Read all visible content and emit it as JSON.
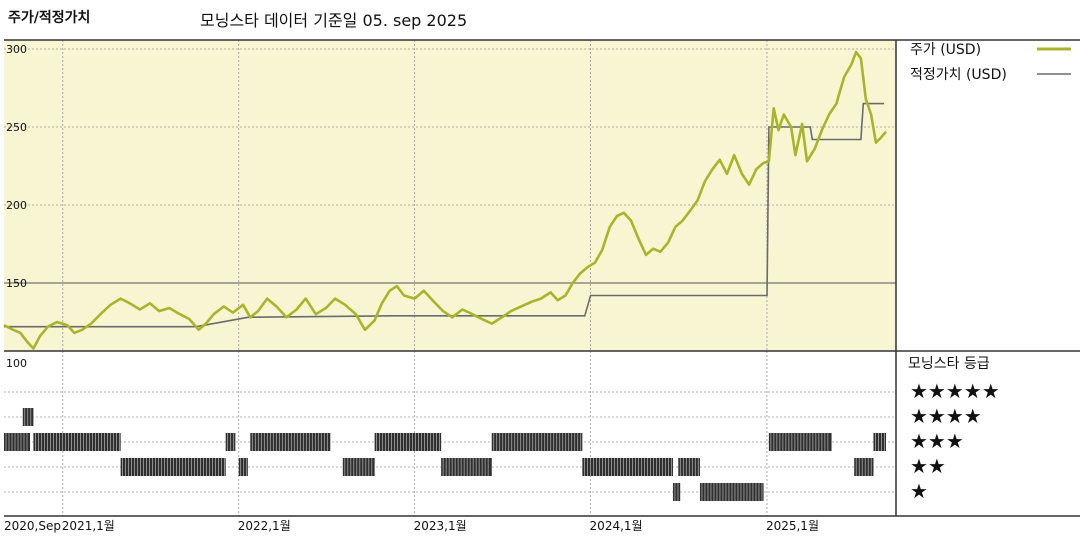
{
  "header": {
    "chart_label": "주가/적정가치",
    "source_note": "모닝스타 데이터 기준일 05. sep 2025"
  },
  "legend": {
    "price_label": "주가 (USD)",
    "fair_label": "적정가치 (USD)",
    "rating_title": "모닝스타 등급",
    "stars": [
      "★★★★★",
      "★★★★",
      "★★★",
      "★★",
      "★"
    ]
  },
  "colors": {
    "price": "#a8b52a",
    "fair": "#6b6b6b",
    "plot_bg": "#f8f5d2",
    "rating_bar": "#333333"
  },
  "chart_data": [
    {
      "type": "line",
      "ylim": [
        100,
        300
      ],
      "yticks": [
        100,
        150,
        200,
        250,
        300
      ],
      "xlim": [
        "2020-09-01",
        "2025-09-05"
      ],
      "xticks": [
        {
          "date": "2020-09-01",
          "label": "2020,Sep"
        },
        {
          "date": "2021-01-01",
          "label": "2021,1월"
        },
        {
          "date": "2022-01-01",
          "label": "2022,1월"
        },
        {
          "date": "2023-01-01",
          "label": "2023,1월"
        },
        {
          "date": "2024-01-01",
          "label": "2024,1월"
        },
        {
          "date": "2025-01-01",
          "label": "2025,1월"
        }
      ],
      "grid": true,
      "series": [
        {
          "name": "주가 (USD)",
          "points": [
            [
              "2020-09-01",
              123
            ],
            [
              "2020-09-20",
              120
            ],
            [
              "2020-10-05",
              118
            ],
            [
              "2020-10-20",
              112
            ],
            [
              "2020-11-01",
              108
            ],
            [
              "2020-11-15",
              116
            ],
            [
              "2020-12-01",
              122
            ],
            [
              "2020-12-20",
              125
            ],
            [
              "2021-01-10",
              123
            ],
            [
              "2021-01-25",
              118
            ],
            [
              "2021-02-10",
              120
            ],
            [
              "2021-03-01",
              124
            ],
            [
              "2021-03-20",
              130
            ],
            [
              "2021-04-10",
              136
            ],
            [
              "2021-05-01",
              140
            ],
            [
              "2021-05-20",
              137
            ],
            [
              "2021-06-10",
              133
            ],
            [
              "2021-07-01",
              137
            ],
            [
              "2021-07-20",
              132
            ],
            [
              "2021-08-10",
              134
            ],
            [
              "2021-09-01",
              130
            ],
            [
              "2021-09-20",
              127
            ],
            [
              "2021-10-10",
              120
            ],
            [
              "2021-10-25",
              124
            ],
            [
              "2021-11-10",
              130
            ],
            [
              "2021-12-01",
              135
            ],
            [
              "2021-12-20",
              131
            ],
            [
              "2022-01-10",
              136
            ],
            [
              "2022-01-25",
              128
            ],
            [
              "2022-02-10",
              132
            ],
            [
              "2022-03-01",
              140
            ],
            [
              "2022-03-20",
              135
            ],
            [
              "2022-04-10",
              128
            ],
            [
              "2022-05-01",
              133
            ],
            [
              "2022-05-20",
              140
            ],
            [
              "2022-06-10",
              130
            ],
            [
              "2022-07-01",
              134
            ],
            [
              "2022-07-20",
              140
            ],
            [
              "2022-08-10",
              136
            ],
            [
              "2022-09-01",
              130
            ],
            [
              "2022-09-20",
              120
            ],
            [
              "2022-10-10",
              126
            ],
            [
              "2022-10-25",
              137
            ],
            [
              "2022-11-10",
              145
            ],
            [
              "2022-11-25",
              148
            ],
            [
              "2022-12-10",
              142
            ],
            [
              "2023-01-01",
              140
            ],
            [
              "2023-01-20",
              145
            ],
            [
              "2023-02-10",
              138
            ],
            [
              "2023-03-01",
              132
            ],
            [
              "2023-03-20",
              128
            ],
            [
              "2023-04-10",
              133
            ],
            [
              "2023-05-01",
              130
            ],
            [
              "2023-05-20",
              127
            ],
            [
              "2023-06-10",
              124
            ],
            [
              "2023-07-01",
              128
            ],
            [
              "2023-07-20",
              132
            ],
            [
              "2023-08-10",
              135
            ],
            [
              "2023-09-01",
              138
            ],
            [
              "2023-09-20",
              140
            ],
            [
              "2023-10-10",
              144
            ],
            [
              "2023-10-25",
              139
            ],
            [
              "2023-11-10",
              142
            ],
            [
              "2023-11-25",
              150
            ],
            [
              "2023-12-10",
              156
            ],
            [
              "2023-12-25",
              160
            ],
            [
              "2024-01-10",
              163
            ],
            [
              "2024-01-25",
              171
            ],
            [
              "2024-02-10",
              186
            ],
            [
              "2024-02-25",
              193
            ],
            [
              "2024-03-10",
              195
            ],
            [
              "2024-03-25",
              190
            ],
            [
              "2024-04-10",
              178
            ],
            [
              "2024-04-25",
              168
            ],
            [
              "2024-05-10",
              172
            ],
            [
              "2024-05-25",
              170
            ],
            [
              "2024-06-10",
              176
            ],
            [
              "2024-06-25",
              186
            ],
            [
              "2024-07-10",
              190
            ],
            [
              "2024-07-25",
              196
            ],
            [
              "2024-08-10",
              203
            ],
            [
              "2024-08-25",
              215
            ],
            [
              "2024-09-10",
              223
            ],
            [
              "2024-09-25",
              229
            ],
            [
              "2024-10-10",
              220
            ],
            [
              "2024-10-25",
              232
            ],
            [
              "2024-11-10",
              220
            ],
            [
              "2024-11-25",
              213
            ],
            [
              "2024-12-10",
              223
            ],
            [
              "2024-12-25",
              227
            ],
            [
              "2025-01-05",
              228
            ],
            [
              "2025-01-15",
              262
            ],
            [
              "2025-01-25",
              248
            ],
            [
              "2025-02-05",
              258
            ],
            [
              "2025-02-20",
              250
            ],
            [
              "2025-03-01",
              232
            ],
            [
              "2025-03-15",
              252
            ],
            [
              "2025-03-25",
              228
            ],
            [
              "2025-04-10",
              236
            ],
            [
              "2025-04-25",
              248
            ],
            [
              "2025-05-10",
              258
            ],
            [
              "2025-05-25",
              265
            ],
            [
              "2025-06-10",
              282
            ],
            [
              "2025-06-25",
              290
            ],
            [
              "2025-07-05",
              298
            ],
            [
              "2025-07-15",
              294
            ],
            [
              "2025-07-25",
              268
            ],
            [
              "2025-08-05",
              258
            ],
            [
              "2025-08-15",
              240
            ],
            [
              "2025-08-25",
              243
            ],
            [
              "2025-09-05",
              247
            ]
          ]
        },
        {
          "name": "적정가치 (USD)",
          "steps": [
            [
              "2020-09-01",
              122
            ],
            [
              "2021-01-01",
              122
            ],
            [
              "2021-10-05",
              122
            ],
            [
              "2022-01-20",
              128
            ],
            [
              "2022-11-15",
              129
            ],
            [
              "2023-12-20",
              129
            ],
            [
              "2024-01-01",
              142
            ],
            [
              "2025-01-01",
              142
            ],
            [
              "2025-01-05",
              250
            ],
            [
              "2025-04-01",
              250
            ],
            [
              "2025-04-05",
              242
            ],
            [
              "2025-07-15",
              242
            ],
            [
              "2025-07-20",
              265
            ],
            [
              "2025-09-01",
              265
            ]
          ]
        }
      ]
    },
    {
      "type": "heatmap",
      "rows": [
        "★★★★★",
        "★★★★",
        "★★★",
        "★★",
        "★"
      ],
      "segments": [
        {
          "rating": 4,
          "start": "2020-10-10",
          "end": "2020-11-01"
        },
        {
          "rating": 3,
          "start": "2020-09-01",
          "end": "2020-10-25"
        },
        {
          "rating": 3,
          "start": "2020-11-01",
          "end": "2021-05-01"
        },
        {
          "rating": 2,
          "start": "2021-05-01",
          "end": "2021-12-05"
        },
        {
          "rating": 3,
          "start": "2021-12-05",
          "end": "2021-12-25"
        },
        {
          "rating": 2,
          "start": "2022-01-01",
          "end": "2022-01-20"
        },
        {
          "rating": 3,
          "start": "2022-01-25",
          "end": "2022-07-10"
        },
        {
          "rating": 2,
          "start": "2022-08-05",
          "end": "2022-10-10"
        },
        {
          "rating": 3,
          "start": "2022-10-10",
          "end": "2023-02-25"
        },
        {
          "rating": 2,
          "start": "2023-02-25",
          "end": "2023-06-10"
        },
        {
          "rating": 3,
          "start": "2023-06-10",
          "end": "2023-12-15"
        },
        {
          "rating": 2,
          "start": "2023-12-15",
          "end": "2024-06-20"
        },
        {
          "rating": 2,
          "start": "2024-07-01",
          "end": "2024-08-15"
        },
        {
          "rating": 1,
          "start": "2024-06-20",
          "end": "2024-07-05"
        },
        {
          "rating": 1,
          "start": "2024-08-15",
          "end": "2024-12-25"
        },
        {
          "rating": 3,
          "start": "2025-01-05",
          "end": "2025-05-15"
        },
        {
          "rating": 2,
          "start": "2025-07-01",
          "end": "2025-08-10"
        },
        {
          "rating": 3,
          "start": "2025-08-10",
          "end": "2025-09-05"
        }
      ]
    }
  ]
}
